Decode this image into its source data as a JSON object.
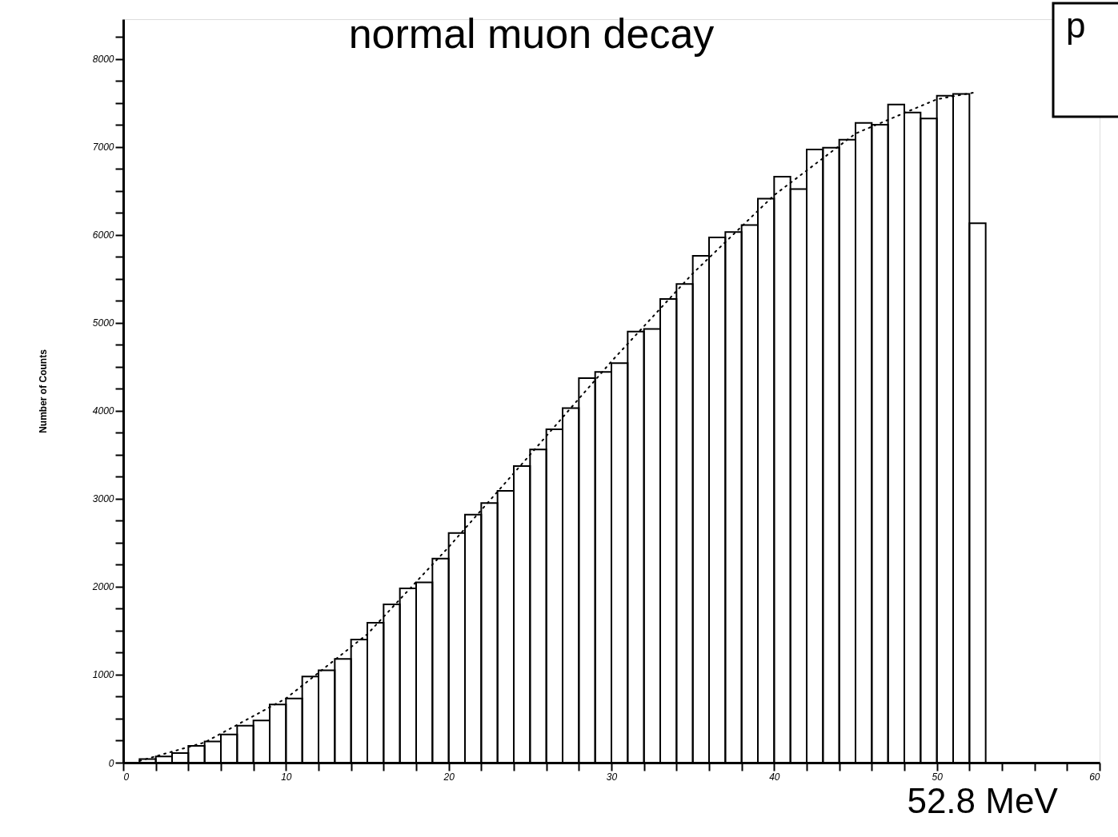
{
  "chart_data": {
    "type": "histogram",
    "title": "normal muon decay",
    "ylabel": "Number of Counts",
    "color": "#000000",
    "bins": [
      1,
      2,
      3,
      4,
      5,
      6,
      7,
      8,
      9,
      10,
      11,
      12,
      13,
      14,
      15,
      16,
      17,
      18,
      19,
      20,
      21,
      22,
      23,
      24,
      25,
      26,
      27,
      28,
      29,
      30,
      31,
      32,
      33,
      34,
      35,
      36,
      37,
      38,
      39,
      40,
      41,
      42,
      43,
      44,
      45,
      46,
      47,
      48,
      49,
      50,
      51,
      52,
      53
    ],
    "values": [
      40,
      70,
      110,
      190,
      240,
      320,
      420,
      480,
      660,
      730,
      980,
      1050,
      1180,
      1400,
      1590,
      1800,
      1980,
      2050,
      2320,
      2610,
      2820,
      2950,
      3090,
      3370,
      3560,
      3790,
      4030,
      4370,
      4440,
      4540,
      4900,
      4930,
      5270,
      5440,
      5760,
      5970,
      6030,
      6110,
      6410,
      6660,
      6520,
      6970,
      6990,
      7080,
      7270,
      7250,
      7480,
      7390,
      7320,
      7580,
      7600,
      6130
    ],
    "series": [
      {
        "type": "line",
        "color": "#000000",
        "line_style": "dotted",
        "x": [
          1,
          5,
          10,
          15,
          20,
          25,
          30,
          35,
          40,
          45,
          50,
          52.4
        ],
        "values": [
          20,
          230,
          730,
          1460,
          2450,
          3500,
          4560,
          5560,
          6450,
          7150,
          7540,
          7620
        ]
      }
    ],
    "xlim": [
      0,
      60
    ],
    "ylim": [
      0,
      8450
    ],
    "xticks": [
      0,
      {
        "value": 2,
        "label": null
      },
      {
        "value": 4,
        "label": null
      },
      {
        "value": 6,
        "label": null
      },
      {
        "value": 8,
        "label": null
      },
      10,
      {
        "value": 12,
        "label": null
      },
      {
        "value": 14,
        "label": null
      },
      {
        "value": 16,
        "label": null
      },
      {
        "value": 18,
        "label": null
      },
      20,
      {
        "value": 22,
        "label": null
      },
      {
        "value": 24,
        "label": null
      },
      {
        "value": 26,
        "label": null
      },
      {
        "value": 28,
        "label": null
      },
      30,
      {
        "value": 32,
        "label": null
      },
      {
        "value": 34,
        "label": null
      },
      {
        "value": 36,
        "label": null
      },
      {
        "value": 38,
        "label": null
      },
      40,
      {
        "value": 42,
        "label": null
      },
      {
        "value": 44,
        "label": null
      },
      {
        "value": 46,
        "label": null
      },
      {
        "value": 48,
        "label": null
      },
      50,
      {
        "value": 52,
        "label": null
      },
      {
        "value": 54,
        "label": null
      },
      {
        "value": 56,
        "label": null
      },
      {
        "value": 58,
        "label": null
      },
      60
    ],
    "yticks": [
      0,
      {
        "value": 250,
        "label": null
      },
      {
        "value": 500,
        "label": null
      },
      {
        "value": 750,
        "label": null
      },
      1000,
      {
        "value": 1250,
        "label": null
      },
      {
        "value": 1500,
        "label": null
      },
      {
        "value": 1750,
        "label": null
      },
      2000,
      {
        "value": 2250,
        "label": null
      },
      {
        "value": 2500,
        "label": null
      },
      {
        "value": 2750,
        "label": null
      },
      3000,
      {
        "value": 3250,
        "label": null
      },
      {
        "value": 3500,
        "label": null
      },
      {
        "value": 3750,
        "label": null
      },
      4000,
      {
        "value": 4250,
        "label": null
      },
      {
        "value": 4500,
        "label": null
      },
      {
        "value": 4750,
        "label": null
      },
      5000,
      {
        "value": 5250,
        "label": null
      },
      {
        "value": 5500,
        "label": null
      },
      {
        "value": 5750,
        "label": null
      },
      6000,
      {
        "value": 6250,
        "label": null
      },
      {
        "value": 6500,
        "label": null
      },
      {
        "value": 6750,
        "label": null
      },
      7000,
      {
        "value": 7250,
        "label": null
      },
      {
        "value": 7500,
        "label": null
      },
      {
        "value": 7750,
        "label": null
      },
      8000,
      {
        "value": 8250,
        "label": null
      }
    ],
    "grid": false,
    "annotations": [
      {
        "text": "52.8 MeV",
        "x": 52.8,
        "y": 0
      },
      "p"
    ]
  }
}
